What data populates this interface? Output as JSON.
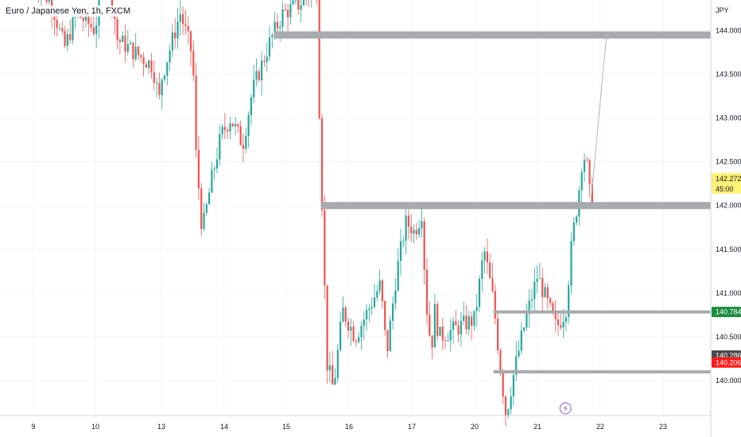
{
  "header": {
    "symbol_title": "Euro / Japanese Yen, 1h, FXCM"
  },
  "axis": {
    "currency": "JPY"
  },
  "chart_data": {
    "type": "candlestick",
    "y_ticks": [
      "144.000",
      "143.500",
      "143.000",
      "142.500",
      "142.000",
      "141.500",
      "141.000",
      "140.500",
      "140.000"
    ],
    "x_ticks": [
      "9",
      "10",
      "13",
      "14",
      "15",
      "16",
      "17",
      "20",
      "21",
      "22",
      "23"
    ],
    "ylim": [
      139.6,
      144.35
    ],
    "colors": {
      "up": "#26a69a",
      "down": "#ef5350",
      "zone": "#a9aaae",
      "projection": "#b2b5be"
    },
    "horizontal_zones": [
      {
        "name": "resistance-zone-144",
        "price": 143.95,
        "from_day": 14.8
      },
      {
        "name": "resistance-zone-142",
        "price": 142.0,
        "from_day": 15.55
      },
      {
        "name": "support-line-140-78",
        "price": 140.784,
        "from_day": 20.3
      },
      {
        "name": "support-line-140-12",
        "price": 140.1,
        "from_day": 20.3
      }
    ],
    "projection_arrow": {
      "from": [
        21.85,
        142.05
      ],
      "to": [
        22.1,
        143.95
      ]
    },
    "price_labels": [
      {
        "name": "current-price-label",
        "value": "142.272",
        "sub": "45:00",
        "price": 142.272,
        "bg": "#fff176",
        "fg": "#131722"
      },
      {
        "name": "green-price-label",
        "value": "140.784",
        "price": 140.784,
        "bg": "#1b8d3e",
        "fg": "#ffffff"
      },
      {
        "name": "gray-price-label",
        "value": "140.286",
        "price": 140.286,
        "bg": "#4a4a4a",
        "fg": "#ffffff"
      },
      {
        "name": "red-price-label",
        "value": "140.206",
        "price": 140.206,
        "bg": "#ff1a1a",
        "fg": "#ffffff"
      }
    ],
    "event_marker": {
      "name": "event-lightning-icon",
      "day": 21.75,
      "glyph": "⚡"
    },
    "price_path": [
      [
        9.0,
        144.6
      ],
      [
        9.3,
        144.3
      ],
      [
        9.5,
        143.8
      ],
      [
        9.7,
        144.2
      ],
      [
        10.0,
        144.0
      ],
      [
        10.2,
        144.5
      ],
      [
        10.5,
        144.7
      ],
      [
        10.8,
        144.3
      ],
      [
        11.0,
        143.9
      ],
      [
        12.6,
        143.6
      ],
      [
        12.9,
        143.2
      ],
      [
        13.1,
        143.7
      ],
      [
        13.3,
        144.2
      ],
      [
        13.5,
        143.7
      ],
      [
        13.55,
        142.6
      ],
      [
        13.65,
        141.7
      ],
      [
        13.8,
        142.3
      ],
      [
        13.95,
        142.8
      ],
      [
        14.1,
        143.0
      ],
      [
        14.3,
        142.7
      ],
      [
        14.45,
        143.3
      ],
      [
        14.6,
        143.6
      ],
      [
        14.75,
        143.9
      ],
      [
        14.95,
        144.2
      ],
      [
        15.2,
        144.3
      ],
      [
        15.5,
        144.5
      ],
      [
        15.53,
        143.0
      ],
      [
        15.6,
        141.3
      ],
      [
        15.65,
        140.2
      ],
      [
        15.75,
        139.9
      ],
      [
        15.9,
        140.8
      ],
      [
        16.1,
        140.5
      ],
      [
        16.3,
        140.8
      ],
      [
        16.5,
        141.1
      ],
      [
        16.6,
        140.3
      ],
      [
        16.75,
        141.2
      ],
      [
        16.9,
        141.8
      ],
      [
        17.1,
        141.7
      ],
      [
        17.3,
        141.8
      ],
      [
        17.5,
        141.95
      ],
      [
        17.55,
        141.6
      ],
      [
        17.65,
        141.0
      ],
      [
        17.8,
        140.6
      ],
      [
        17.95,
        140.4
      ],
      [
        18.1,
        140.8
      ],
      [
        18.3,
        140.5
      ],
      [
        20.0,
        140.7
      ],
      [
        20.15,
        141.5
      ],
      [
        20.3,
        140.9
      ],
      [
        20.4,
        140.2
      ],
      [
        20.5,
        139.6
      ],
      [
        20.6,
        140.0
      ],
      [
        20.75,
        140.5
      ],
      [
        20.85,
        140.8
      ],
      [
        21.0,
        141.2
      ],
      [
        21.15,
        140.9
      ],
      [
        21.3,
        140.6
      ],
      [
        21.45,
        140.8
      ],
      [
        21.55,
        141.6
      ],
      [
        21.65,
        142.1
      ],
      [
        21.72,
        142.6
      ],
      [
        21.78,
        142.5
      ],
      [
        21.85,
        142.0
      ],
      [
        21.9,
        142.27
      ]
    ]
  }
}
